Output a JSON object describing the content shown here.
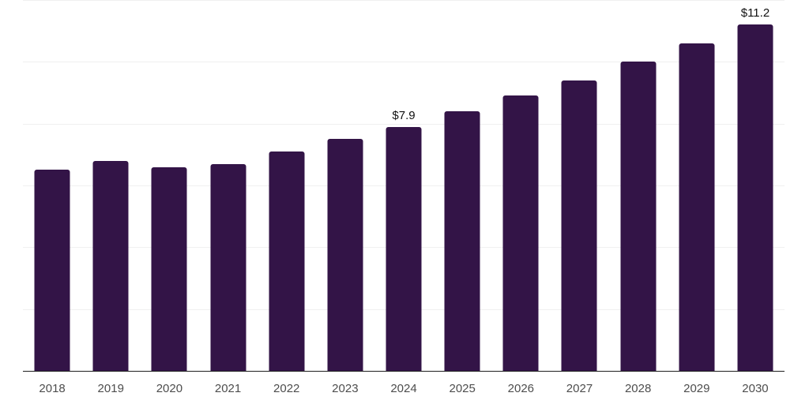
{
  "chart_data": {
    "type": "bar",
    "title": "",
    "xlabel": "",
    "ylabel": "",
    "categories": [
      "2018",
      "2019",
      "2020",
      "2021",
      "2022",
      "2023",
      "2024",
      "2025",
      "2026",
      "2027",
      "2028",
      "2029",
      "2030"
    ],
    "values": [
      6.5,
      6.8,
      6.6,
      6.7,
      7.1,
      7.5,
      7.9,
      8.4,
      8.9,
      9.4,
      10.0,
      10.6,
      11.2
    ],
    "data_labels": [
      null,
      null,
      null,
      null,
      null,
      null,
      "$7.9",
      null,
      null,
      null,
      null,
      null,
      "$11.2"
    ],
    "ylim": [
      0,
      12
    ],
    "gridline_step": 2,
    "grid": true,
    "legend": false,
    "y_axis_labels_shown": false,
    "colors": {
      "bar": "#331447",
      "data_label": "#111111",
      "tick_label": "#4d4d4d",
      "axis_line": "#1f1f1f",
      "gridline": "#f0f0f0",
      "background": "#ffffff"
    }
  }
}
